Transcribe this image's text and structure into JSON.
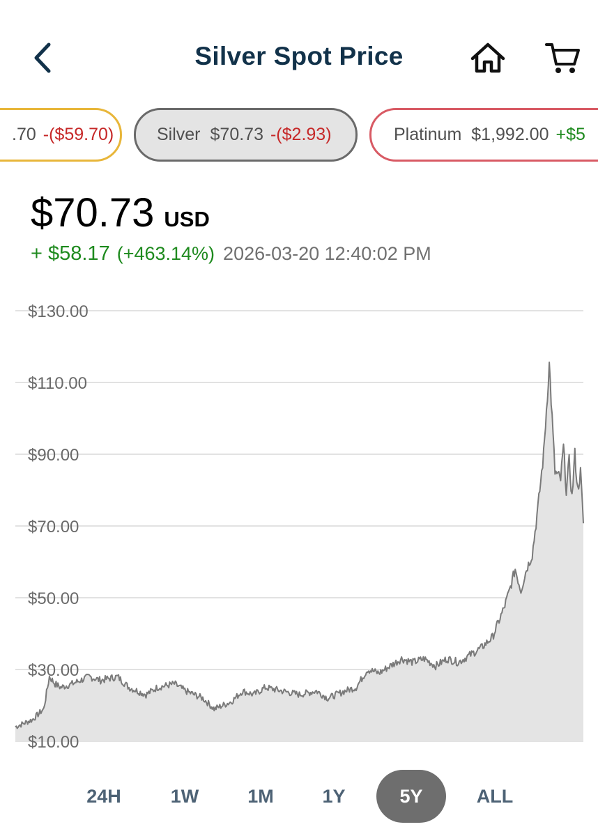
{
  "header": {
    "title": "Silver Spot Price",
    "back_icon": "chevron-left-icon",
    "home_icon": "home-icon",
    "cart_icon": "cart-icon",
    "accent_color": "#12324a"
  },
  "metals": [
    {
      "name": "",
      "price": ".70",
      "change": "-($59.70)",
      "border_color": "#e8b63a",
      "direction": "down"
    },
    {
      "name": "Silver",
      "price": "$70.73",
      "change": "-($2.93)",
      "border_color": "#6a6a6a",
      "direction": "down",
      "selected": true
    },
    {
      "name": "Platinum",
      "price": "$1,992.00",
      "change": "+$5",
      "border_color": "#d85a64",
      "direction": "up"
    }
  ],
  "quote": {
    "price": "$70.73",
    "currency": "USD",
    "change_abs": "+ $58.17",
    "change_pct": "(+463.14%)",
    "timestamp": "2026-03-20 12:40:02 PM",
    "positive_color": "#1e8a1e",
    "negative_color": "#c62828"
  },
  "ranges": {
    "options": [
      "24H",
      "1W",
      "1M",
      "1Y",
      "5Y",
      "ALL"
    ],
    "selected": "5Y"
  },
  "chart_data": {
    "type": "area",
    "title": "",
    "xlabel": "",
    "ylabel": "",
    "ylim": [
      10,
      130
    ],
    "y_ticks": [
      "$130.00",
      "$110.00",
      "$90.00",
      "$70.00",
      "$50.00",
      "$30.00",
      "$10.00"
    ],
    "y_tick_values": [
      130,
      110,
      90,
      70,
      50,
      30,
      10
    ],
    "grid": true,
    "x_index_max": 100,
    "x": [
      0,
      3,
      5,
      6,
      7,
      8,
      10,
      13,
      15,
      18,
      20,
      23,
      25,
      28,
      30,
      33,
      35,
      38,
      40,
      42,
      44,
      47,
      50,
      53,
      55,
      58,
      60,
      62,
      64,
      66,
      68,
      70,
      72,
      74,
      76,
      78,
      80,
      82,
      84,
      85,
      86,
      87,
      88,
      89,
      90,
      91,
      92,
      93,
      94,
      95,
      96,
      96.5,
      97,
      97.5,
      98,
      98.5,
      99,
      99.5,
      100
    ],
    "values": [
      14,
      16,
      19,
      28,
      26,
      25,
      26,
      28,
      27,
      28,
      25,
      23,
      25,
      26,
      24,
      22,
      19,
      21,
      24,
      23,
      25,
      24,
      23,
      24,
      22,
      24,
      25,
      30,
      29,
      31,
      33,
      32,
      33,
      31,
      33,
      32,
      34,
      36,
      39,
      43,
      47,
      52,
      58,
      52,
      58,
      62,
      75,
      90,
      115,
      85,
      83,
      92,
      80,
      88,
      78,
      90,
      80,
      85,
      70.73
    ],
    "fill_color": "#e4e4e4",
    "line_color": "#7a7a7a"
  }
}
